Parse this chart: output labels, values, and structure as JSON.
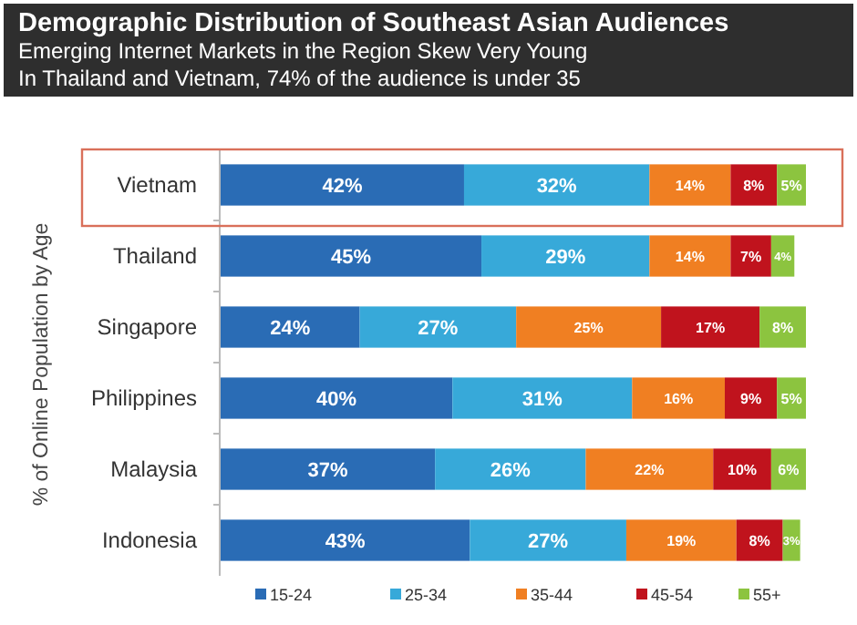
{
  "chart_data": {
    "type": "bar",
    "orientation": "horizontal",
    "stacked": true,
    "title": "Demographic Distribution of Southeast Asian Audiences",
    "subtitle": "Emerging Internet Markets in the Region Skew Very Young",
    "annotations": [
      "In Thailand and Vietnam, 74% of the audience is under 35"
    ],
    "ylabel": "% of Online Population by Age",
    "categories": [
      "Vietnam",
      "Thailand",
      "Singapore",
      "Philippines",
      "Malaysia",
      "Indonesia"
    ],
    "legend": "bottom",
    "series": [
      {
        "name": "15-24",
        "color": "#2a6cb5",
        "values": [
          42,
          45,
          24,
          40,
          37,
          43
        ],
        "value_labels": [
          "42%",
          "45%",
          "24%",
          "40%",
          "37%",
          "43%"
        ]
      },
      {
        "name": "25-34",
        "color": "#37a9d9",
        "values": [
          32,
          29,
          27,
          31,
          26,
          27
        ],
        "value_labels": [
          "32%",
          "29%",
          "27%",
          "31%",
          "26%",
          "27%"
        ]
      },
      {
        "name": "35-44",
        "color": "#f07f22",
        "values": [
          14,
          14,
          25,
          16,
          22,
          19
        ],
        "value_labels": [
          "14%",
          "14%",
          "25%",
          "16%",
          "22%",
          "19%"
        ]
      },
      {
        "name": "45-54",
        "color": "#c0131d",
        "values": [
          8,
          7,
          17,
          9,
          10,
          8
        ],
        "value_labels": [
          "8%",
          "7%",
          "17%",
          "9%",
          "10%",
          "8%"
        ]
      },
      {
        "name": "55+",
        "color": "#8cc43f",
        "values": [
          5,
          4,
          8,
          5,
          6,
          3
        ],
        "value_labels": [
          "5%",
          "4%",
          "8%",
          "5%",
          "6%",
          "3%"
        ]
      }
    ]
  }
}
